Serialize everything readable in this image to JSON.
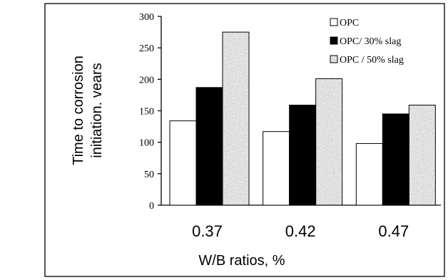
{
  "chart_data": {
    "type": "bar",
    "categories": [
      "0.37",
      "0.42",
      "0.47"
    ],
    "series": [
      {
        "name": "OPC",
        "values": [
          134,
          117,
          98
        ],
        "color": "#ffffff",
        "fill": "solid"
      },
      {
        "name": "OPC/ 30% slag",
        "values": [
          187,
          159,
          145
        ],
        "color": "#000000",
        "fill": "solid"
      },
      {
        "name": "OPC / 50% slag",
        "values": [
          275,
          201,
          159
        ],
        "color": "#b8b8b8",
        "fill": "speckle"
      }
    ],
    "title": "",
    "xlabel": "W/B ratios, %",
    "ylabel_line1": "Time to corrosion",
    "ylabel_line2": "initiation. vears",
    "ylim": [
      0,
      300
    ],
    "yticks": [
      0,
      50,
      100,
      150,
      200,
      250,
      300
    ],
    "grid": false,
    "legend_position": "top-right"
  }
}
